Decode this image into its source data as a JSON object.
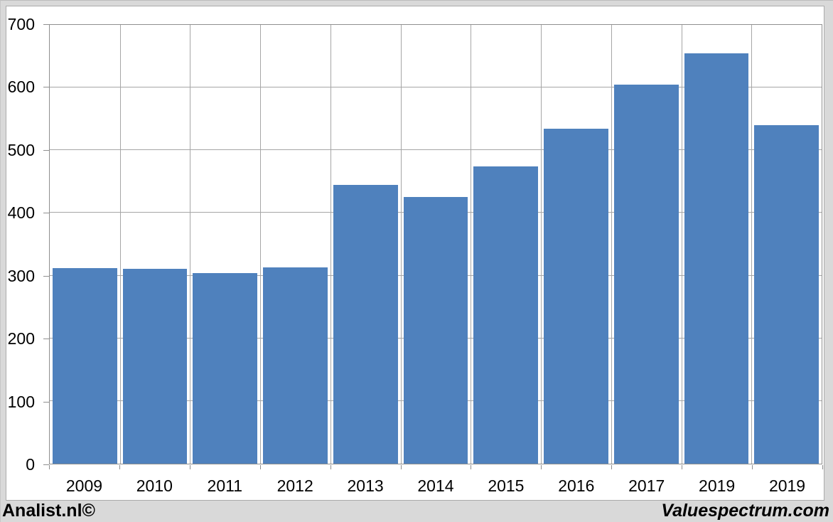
{
  "chart_data": {
    "type": "bar",
    "categories": [
      "2009",
      "2010",
      "2011",
      "2012",
      "2013",
      "2014",
      "2015",
      "2016",
      "2017",
      "2019",
      "2019"
    ],
    "values": [
      312,
      311,
      304,
      313,
      445,
      425,
      474,
      534,
      605,
      655,
      540
    ],
    "title": "",
    "xlabel": "",
    "ylabel": "",
    "ylim": [
      0,
      700
    ],
    "yticks": [
      0,
      100,
      200,
      300,
      400,
      500,
      600,
      700
    ],
    "grid": true,
    "legend_position": "none",
    "bar_color": "#4f81bd",
    "gridline_color": "#a6a6a6",
    "axis_color": "#8f8f8f",
    "plot_background": "#ffffff",
    "page_background": "#d9d9d9"
  },
  "footer": {
    "left_text": "Analist.nl©",
    "right_text": "Valuespectrum.com"
  }
}
